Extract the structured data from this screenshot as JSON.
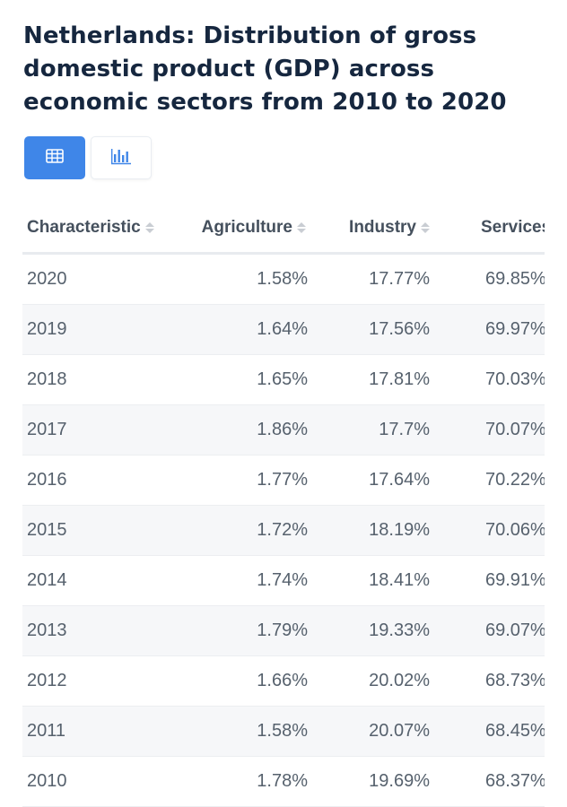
{
  "title": "Netherlands: Distribution of gross domestic product (GDP) across economic sectors from 2010 to 2020",
  "view_toggle": {
    "table_icon": "table-icon",
    "chart_icon": "bar-chart-icon",
    "active": "table"
  },
  "colors": {
    "accent": "#3f86e8",
    "title": "#16273f",
    "stripe": "#f6f7f9"
  },
  "table": {
    "headers": [
      "Characteristic",
      "Agriculture",
      "Industry",
      "Services"
    ],
    "rows": [
      [
        "2020",
        "1.58%",
        "17.77%",
        "69.85%"
      ],
      [
        "2019",
        "1.64%",
        "17.56%",
        "69.97%"
      ],
      [
        "2018",
        "1.65%",
        "17.81%",
        "70.03%"
      ],
      [
        "2017",
        "1.86%",
        "17.7%",
        "70.07%"
      ],
      [
        "2016",
        "1.77%",
        "17.64%",
        "70.22%"
      ],
      [
        "2015",
        "1.72%",
        "18.19%",
        "70.06%"
      ],
      [
        "2014",
        "1.74%",
        "18.41%",
        "69.91%"
      ],
      [
        "2013",
        "1.79%",
        "19.33%",
        "69.07%"
      ],
      [
        "2012",
        "1.66%",
        "20.02%",
        "68.73%"
      ],
      [
        "2011",
        "1.58%",
        "20.07%",
        "68.45%"
      ],
      [
        "2010",
        "1.78%",
        "19.69%",
        "68.37%"
      ]
    ]
  },
  "chart_data": {
    "type": "table",
    "title": "Netherlands: Distribution of gross domestic product (GDP) across economic sectors from 2010 to 2020",
    "categories": [
      "2020",
      "2019",
      "2018",
      "2017",
      "2016",
      "2015",
      "2014",
      "2013",
      "2012",
      "2011",
      "2010"
    ],
    "series": [
      {
        "name": "Agriculture",
        "values": [
          1.58,
          1.64,
          1.65,
          1.86,
          1.77,
          1.72,
          1.74,
          1.79,
          1.66,
          1.58,
          1.78
        ]
      },
      {
        "name": "Industry",
        "values": [
          17.77,
          17.56,
          17.81,
          17.7,
          17.64,
          18.19,
          18.41,
          19.33,
          20.02,
          20.07,
          19.69
        ]
      },
      {
        "name": "Services",
        "values": [
          69.85,
          69.97,
          70.03,
          70.07,
          70.22,
          70.06,
          69.91,
          69.07,
          68.73,
          68.45,
          68.37
        ]
      }
    ]
  }
}
